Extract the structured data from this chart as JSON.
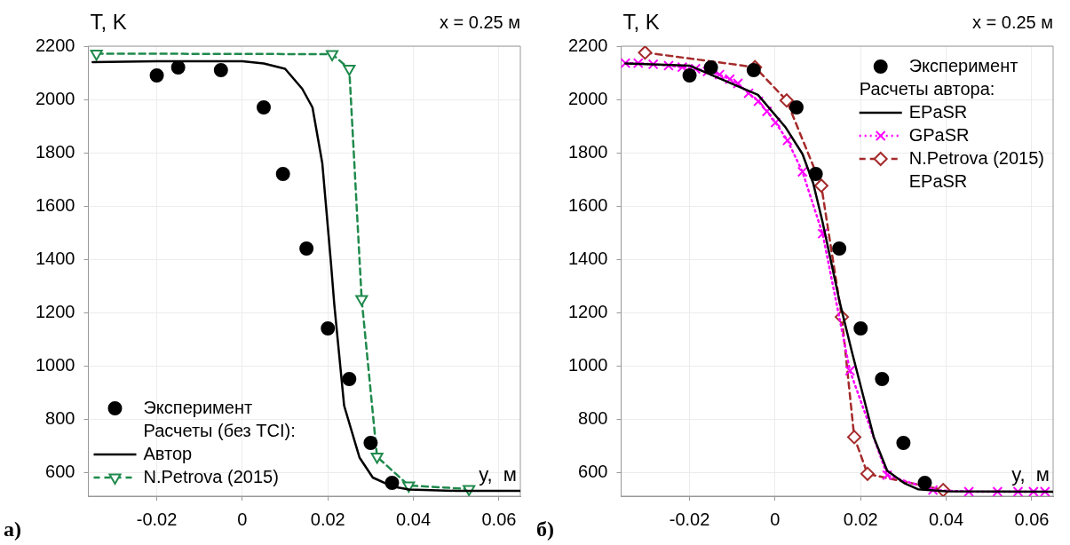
{
  "chart_data": [
    {
      "type": "line",
      "title": "x = 0.25 м",
      "xlabel": "y,  м",
      "ylabel": "T, K",
      "legend_title": "Расчеты (без TCI):",
      "annotations": [
        "а)"
      ],
      "xlim": [
        -0.036,
        0.065
      ],
      "xticks": [
        -0.02,
        0,
        0.02,
        0.04,
        0.06
      ],
      "ylim": [
        510,
        2200
      ],
      "yticks": [
        600,
        800,
        1000,
        1200,
        1400,
        1600,
        1800,
        2000,
        2200
      ],
      "grid": true,
      "legend": "bottom left",
      "series": [
        {
          "name": "Эксперимент",
          "type": "scatter",
          "color": "#000000",
          "marker": "circle",
          "x": [
            -0.02,
            -0.015,
            -0.005,
            0.005,
            0.0095,
            0.015,
            0.02,
            0.025,
            0.03,
            0.035
          ],
          "values": [
            2090,
            2120,
            2110,
            1970,
            1720,
            1440,
            1140,
            950,
            710,
            560
          ]
        },
        {
          "name": "Автор",
          "type": "line",
          "color": "#000000",
          "marker": "none",
          "line_style": "solid",
          "x": [
            -0.035,
            -0.02,
            0,
            0.005,
            0.01,
            0.014,
            0.0164,
            0.0187,
            0.0207,
            0.0215,
            0.0238,
            0.0274,
            0.0305,
            0.035,
            0.039,
            0.05,
            0.065
          ],
          "values": [
            2140,
            2143,
            2143,
            2135,
            2115,
            2040,
            1970,
            1760,
            1390,
            1230,
            850,
            655,
            580,
            547,
            535,
            530,
            530
          ]
        },
        {
          "name": "N.Petrova (2015)",
          "type": "line",
          "color": "#1f8a4c",
          "marker": "triangle",
          "line_style": "dashed",
          "x": [
            -0.0341,
            0.021,
            0.025,
            0.0279,
            0.0315,
            0.0389,
            0.053
          ],
          "values": [
            2172,
            2170,
            2115,
            1250,
            658,
            550,
            537
          ]
        }
      ]
    },
    {
      "type": "line",
      "title": "x = 0.25 м",
      "xlabel": "y,  м",
      "ylabel": "T, K",
      "legend_title": "Расчеты автора:",
      "annotations": [
        "б)"
      ],
      "xlim": [
        -0.036,
        0.065
      ],
      "xticks": [
        -0.02,
        0,
        0.02,
        0.04,
        0.06
      ],
      "ylim": [
        510,
        2200
      ],
      "yticks": [
        600,
        800,
        1000,
        1200,
        1400,
        1600,
        1800,
        2000,
        2200
      ],
      "grid": true,
      "legend": "top right",
      "series": [
        {
          "name": "Эксперимент",
          "type": "scatter",
          "color": "#000000",
          "marker": "circle",
          "x": [
            -0.02,
            -0.015,
            -0.005,
            0.005,
            0.0095,
            0.015,
            0.02,
            0.025,
            0.03,
            0.035
          ],
          "values": [
            2090,
            2120,
            2110,
            1970,
            1720,
            1440,
            1140,
            950,
            710,
            560
          ]
        },
        {
          "name": "EPaSR",
          "type": "line",
          "color": "#000000",
          "marker": "none",
          "line_style": "solid",
          "x": [
            -0.035,
            -0.02,
            -0.004,
            0.0025,
            0.0064,
            0.0089,
            0.0111,
            0.0152,
            0.018,
            0.0231,
            0.0262,
            0.0302,
            0.0334,
            0.04,
            0.065
          ],
          "values": [
            2135,
            2127,
            2017,
            1894,
            1795,
            1686,
            1539,
            1232,
            1049,
            730,
            606,
            559,
            536,
            528,
            527
          ]
        },
        {
          "name": "GPaSR",
          "type": "line",
          "color": "#ff00ff",
          "marker": "cross",
          "line_style": "dotted",
          "x": [
            -0.035,
            -0.032,
            -0.0285,
            -0.0249,
            -0.0217,
            -0.0186,
            -0.0158,
            -0.013,
            -0.0106,
            -0.0087,
            -0.0062,
            -0.0039,
            -0.0019,
            0.0001,
            0.0029,
            0.0064,
            0.0111,
            0.0175,
            0.0262,
            0.0369,
            0.0453,
            0.052,
            0.0568,
            0.0604,
            0.0631
          ],
          "values": [
            2136,
            2136,
            2132,
            2127,
            2121,
            2115,
            2105,
            2093,
            2076,
            2060,
            2023,
            1993,
            1955,
            1913,
            1846,
            1728,
            1496,
            981,
            589,
            533,
            527,
            527,
            527,
            527,
            527
          ]
        },
        {
          "name": "N.Petrova (2015) EPaSR",
          "type": "line",
          "color": "#a52a2a",
          "marker": "diamond",
          "line_style": "dashed",
          "x": [
            -0.0304,
            -0.0047,
            0.0027,
            0.0108,
            0.0156,
            0.0185,
            0.0216,
            0.0393
          ],
          "values": [
            2176,
            2121,
            1996,
            1676,
            1183,
            732,
            594,
            533
          ]
        }
      ]
    }
  ]
}
